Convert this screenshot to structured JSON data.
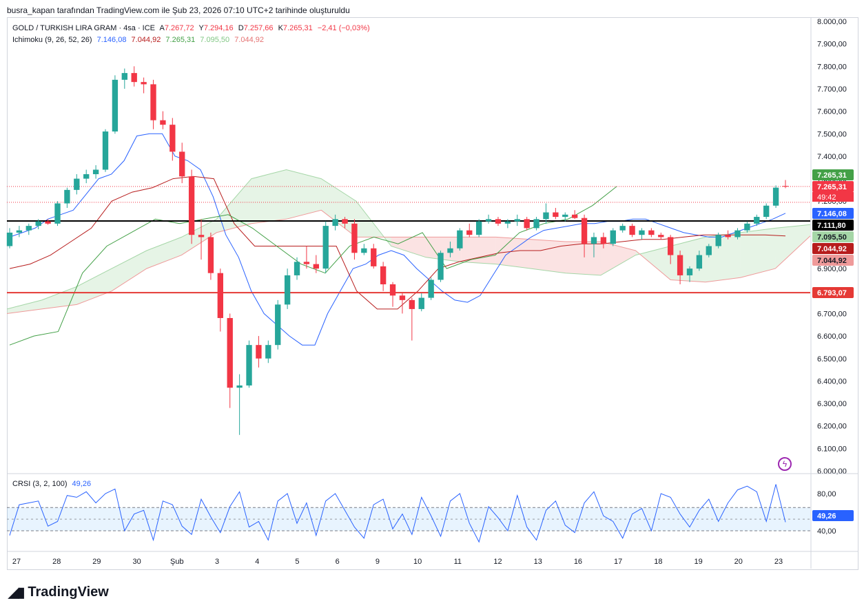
{
  "header": {
    "text": "busra_kapan tarafından TradingView.com ile Şub 23, 2026 07:10 UTC+2 tarihinde oluşturuldu"
  },
  "legend": {
    "symbol": "GOLD / TURKISH LIRA GRAM · 4sa · ICE",
    "open_label": "A",
    "open": "7.267,72",
    "high_label": "Y",
    "high": "7.294,16",
    "low_label": "D",
    "low": "7.257,66",
    "close_label": "K",
    "close": "7.265,31",
    "change": "−2,41 (−0,03%)",
    "ichimoku_name": "Ichimoku (9, 26, 52, 26)",
    "ichimoku_values": [
      "7.146,08",
      "7.044,92",
      "7.265,31",
      "7.095,50",
      "7.044,92"
    ],
    "crsi_name": "CRSI (3, 2, 100)",
    "crsi_value": "49,26"
  },
  "colors": {
    "up": "#26a69a",
    "down": "#f23645",
    "tenkan": "#2962ff",
    "kijun": "#b71c1c",
    "chikou": "#43a047",
    "spanA": "#a5d6a7",
    "spanB": "#ef9a9a",
    "crsi": "#2962ff",
    "support": "#e53935"
  },
  "brand": {
    "name": "TradingView"
  },
  "chart_data": {
    "type": "candlestick",
    "x_ticks": [
      "27",
      "28",
      "29",
      "30",
      "Şub",
      "3",
      "4",
      "5",
      "6",
      "9",
      "10",
      "11",
      "12",
      "13",
      "16",
      "17",
      "18",
      "19",
      "20",
      "23"
    ],
    "y_ticks": [
      "8.000,00",
      "7.900,00",
      "7.800,00",
      "7.700,00",
      "7.600,00",
      "7.500,00",
      "7.400,00",
      "7.300,00",
      "7.200,00",
      "7.100,00",
      "7.000,00",
      "6.900,00",
      "6.800,00",
      "6.700,00",
      "6.600,00",
      "6.500,00",
      "6.400,00",
      "6.300,00",
      "6.200,00",
      "6.100,00",
      "6.000,00"
    ],
    "ylim": [
      6000,
      8000
    ],
    "candles": [
      [
        7000,
        7080,
        6990,
        7060
      ],
      [
        7060,
        7090,
        7040,
        7070
      ],
      [
        7070,
        7100,
        7050,
        7090
      ],
      [
        7090,
        7120,
        7075,
        7110
      ],
      [
        7110,
        7120,
        7095,
        7100
      ],
      [
        7100,
        7200,
        7090,
        7190
      ],
      [
        7190,
        7260,
        7170,
        7250
      ],
      [
        7250,
        7320,
        7230,
        7300
      ],
      [
        7300,
        7340,
        7280,
        7320
      ],
      [
        7320,
        7360,
        7300,
        7340
      ],
      [
        7340,
        7520,
        7330,
        7510
      ],
      [
        7510,
        7760,
        7500,
        7740
      ],
      [
        7740,
        7790,
        7700,
        7770
      ],
      [
        7770,
        7800,
        7710,
        7730
      ],
      [
        7730,
        7750,
        7680,
        7720
      ],
      [
        7720,
        7740,
        7520,
        7560
      ],
      [
        7560,
        7600,
        7520,
        7540
      ],
      [
        7540,
        7570,
        7380,
        7420
      ],
      [
        7420,
        7460,
        7280,
        7310
      ],
      [
        7310,
        7340,
        7010,
        7050
      ],
      [
        7050,
        7120,
        6940,
        7040
      ],
      [
        7040,
        7060,
        6850,
        6880
      ],
      [
        6880,
        6900,
        6620,
        6680
      ],
      [
        6680,
        6700,
        6280,
        6370
      ],
      [
        6370,
        6430,
        6160,
        6380
      ],
      [
        6380,
        6580,
        6370,
        6560
      ],
      [
        6560,
        6600,
        6460,
        6500
      ],
      [
        6500,
        6580,
        6480,
        6560
      ],
      [
        6560,
        6760,
        6540,
        6740
      ],
      [
        6740,
        6900,
        6720,
        6870
      ],
      [
        6870,
        6950,
        6850,
        6930
      ],
      [
        6930,
        7000,
        6900,
        6920
      ],
      [
        6920,
        6960,
        6880,
        6900
      ],
      [
        6900,
        7110,
        6880,
        7090
      ],
      [
        7090,
        7140,
        7070,
        7120
      ],
      [
        7120,
        7130,
        7080,
        7100
      ],
      [
        7100,
        7120,
        6940,
        6970
      ],
      [
        6970,
        7010,
        6960,
        6990
      ],
      [
        6990,
        7010,
        6900,
        6910
      ],
      [
        6910,
        6930,
        6800,
        6830
      ],
      [
        6830,
        6840,
        6730,
        6780
      ],
      [
        6780,
        6790,
        6700,
        6760
      ],
      [
        6760,
        6770,
        6580,
        6720
      ],
      [
        6720,
        6790,
        6710,
        6770
      ],
      [
        6770,
        6860,
        6760,
        6850
      ],
      [
        6850,
        6980,
        6840,
        6970
      ],
      [
        6970,
        7020,
        6950,
        6990
      ],
      [
        6990,
        7080,
        6980,
        7070
      ],
      [
        7070,
        7100,
        7040,
        7050
      ],
      [
        7050,
        7120,
        7040,
        7110
      ],
      [
        7110,
        7140,
        7100,
        7120
      ],
      [
        7120,
        7130,
        7090,
        7100
      ],
      [
        7100,
        7120,
        7080,
        7110
      ],
      [
        7110,
        7140,
        7090,
        7120
      ],
      [
        7120,
        7130,
        7070,
        7080
      ],
      [
        7080,
        7130,
        7070,
        7120
      ],
      [
        7120,
        7190,
        7100,
        7150
      ],
      [
        7150,
        7170,
        7120,
        7130
      ],
      [
        7130,
        7150,
        7110,
        7140
      ],
      [
        7140,
        7160,
        7120,
        7125
      ],
      [
        7125,
        7140,
        6950,
        7010
      ],
      [
        7010,
        7060,
        6950,
        7040
      ],
      [
        7040,
        7060,
        6990,
        7010
      ],
      [
        7010,
        7080,
        7000,
        7070
      ],
      [
        7070,
        7100,
        7060,
        7090
      ],
      [
        7090,
        7100,
        7040,
        7050
      ],
      [
        7050,
        7080,
        7030,
        7070
      ],
      [
        7070,
        7080,
        7040,
        7050
      ],
      [
        7050,
        7060,
        7030,
        7040
      ],
      [
        7040,
        7050,
        6920,
        6960
      ],
      [
        6960,
        6980,
        6830,
        6870
      ],
      [
        6870,
        6910,
        6840,
        6900
      ],
      [
        6900,
        6980,
        6890,
        6960
      ],
      [
        6960,
        7010,
        6950,
        7000
      ],
      [
        7000,
        7060,
        6990,
        7050
      ],
      [
        7050,
        7070,
        7030,
        7040
      ],
      [
        7040,
        7080,
        7030,
        7070
      ],
      [
        7070,
        7110,
        7060,
        7100
      ],
      [
        7100,
        7140,
        7090,
        7130
      ],
      [
        7130,
        7190,
        7120,
        7180
      ],
      [
        7180,
        7270,
        7170,
        7260
      ],
      [
        7267.72,
        7294.16,
        7257.66,
        7265.31
      ]
    ],
    "tenkan": [
      7040,
      7060,
      7080,
      7120,
      7140,
      7160,
      7230,
      7300,
      7320,
      7380,
      7490,
      7500,
      7500,
      7400,
      7380,
      7340,
      7220,
      7050,
      6950,
      6800,
      6700,
      6650,
      6600,
      6560,
      6560,
      6700,
      6800,
      6900,
      6920,
      6960,
      6980,
      6960,
      6900,
      6850,
      6800,
      6760,
      6750,
      6780,
      6870,
      6960,
      7000,
      7040,
      7070,
      7080,
      7090,
      7100,
      7100,
      7110,
      7110,
      7120,
      7120,
      7100,
      7080,
      7060,
      7050,
      7040,
      7040,
      7060,
      7080,
      7100,
      7120,
      7146.08
    ],
    "kijun": [
      6900,
      6920,
      6960,
      7020,
      7080,
      7200,
      7240,
      7260,
      7300,
      7310,
      7300,
      7100,
      7000,
      7000,
      7000,
      7000,
      7000,
      6800,
      6720,
      6720,
      6800,
      6900,
      6930,
      6950,
      6970,
      6980,
      6980,
      7000,
      7010,
      7010,
      7020,
      7030,
      7030,
      7040,
      7050,
      7050,
      7050,
      7050,
      7044.92
    ],
    "chikou": [
      6560,
      6600,
      6620,
      6880,
      7000,
      7060,
      7120,
      7100,
      7120,
      7140,
      7080,
      7000,
      6920,
      6880,
      7000,
      7040,
      7010,
      7060,
      6900,
      6940,
      6960,
      7060,
      7100,
      7120,
      7180,
      7265.31
    ],
    "spanA": [
      6720,
      6760,
      6820,
      6900,
      6980,
      7040,
      7120,
      7300,
      7340,
      7300,
      7200,
      7000,
      6950,
      6930,
      6920,
      6900,
      6880,
      6870,
      6960,
      7000,
      7040,
      7060,
      7080,
      7095.5
    ],
    "spanB": [
      6700,
      6720,
      6740,
      6800,
      6900,
      6960,
      7060,
      7100,
      7120,
      7160,
      7040,
      7040,
      7040,
      7040,
      7040,
      7030,
      7020,
      7020,
      6980,
      6850,
      6840,
      6860,
      6900,
      7044.92
    ],
    "current_price": "7.265,31",
    "countdown": "49:42",
    "price_labels": [
      "7.265,31",
      "7.146,08",
      "7.111,80",
      "7.095,50",
      "7.044,92",
      "7.044,92",
      "6.793,07"
    ],
    "support_level": 6793.07,
    "resistance_level": 7111.8,
    "crsi": {
      "ylim": [
        20,
        100
      ],
      "y_ticks": [
        "80,00",
        "40,00"
      ],
      "band": [
        40,
        65
      ],
      "values": [
        35,
        68,
        70,
        72,
        45,
        50,
        78,
        76,
        82,
        70,
        80,
        85,
        40,
        58,
        62,
        30,
        72,
        68,
        45,
        36,
        74,
        55,
        38,
        66,
        82,
        44,
        50,
        30,
        72,
        80,
        48,
        70,
        35,
        72,
        80,
        62,
        44,
        32,
        68,
        74,
        42,
        58,
        36,
        76,
        56,
        34,
        72,
        80,
        48,
        28,
        66,
        54,
        40,
        78,
        44,
        30,
        62,
        72,
        46,
        38,
        70,
        82,
        56,
        50,
        32,
        58,
        64,
        40,
        80,
        76,
        58,
        44,
        62,
        74,
        50,
        70,
        84,
        88,
        82,
        50,
        90,
        49.26
      ],
      "value_label": "49,26"
    }
  }
}
